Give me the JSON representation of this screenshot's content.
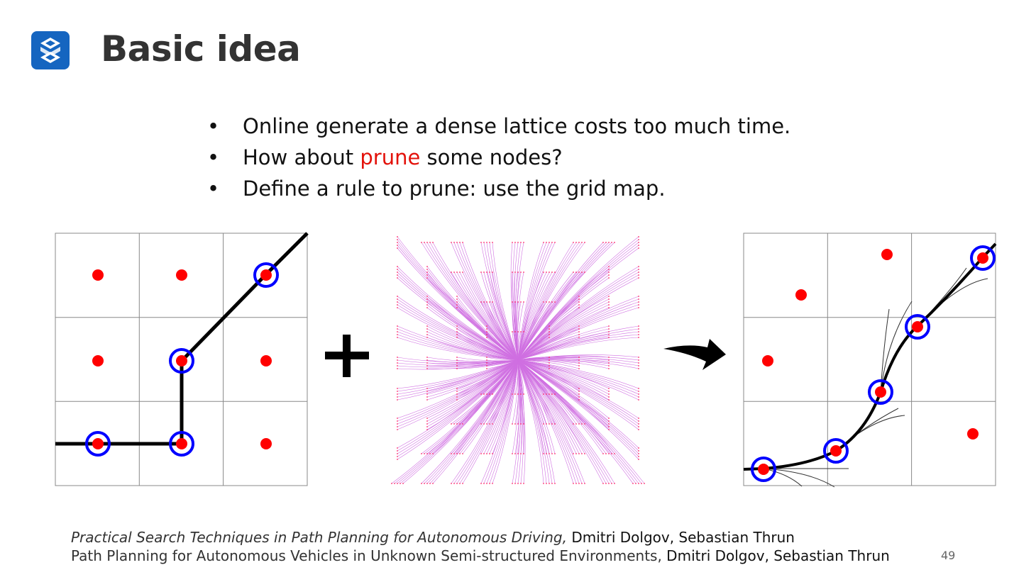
{
  "logo": {
    "icon": "s-logo-icon",
    "color": "#1565c0"
  },
  "title": "Basic idea",
  "bullets": {
    "b1": "Online generate a dense lattice costs too much time.",
    "b2_pre": "How about ",
    "b2_highlight": "prune",
    "b2_post": " some nodes?",
    "b3": "Define a rule to prune: use the grid map."
  },
  "figures": {
    "plus_symbol": "+",
    "arrow_icon": "curved-arrow-icon",
    "node_color": "#ff0000",
    "circle_color": "#0000ff",
    "lattice_color": "#c040d8"
  },
  "references": {
    "ref1_title": "Practical Search Techniques in Path Planning for Autonomous Driving,",
    "ref1_authors": " Dmitri Dolgov, Sebastian Thrun",
    "ref2_title": "Path Planning for Autonomous Vehicles in Unknown Semi-structured Environments,",
    "ref2_authors": " Dmitri Dolgov, Sebastian Thrun"
  },
  "page_number": "49"
}
